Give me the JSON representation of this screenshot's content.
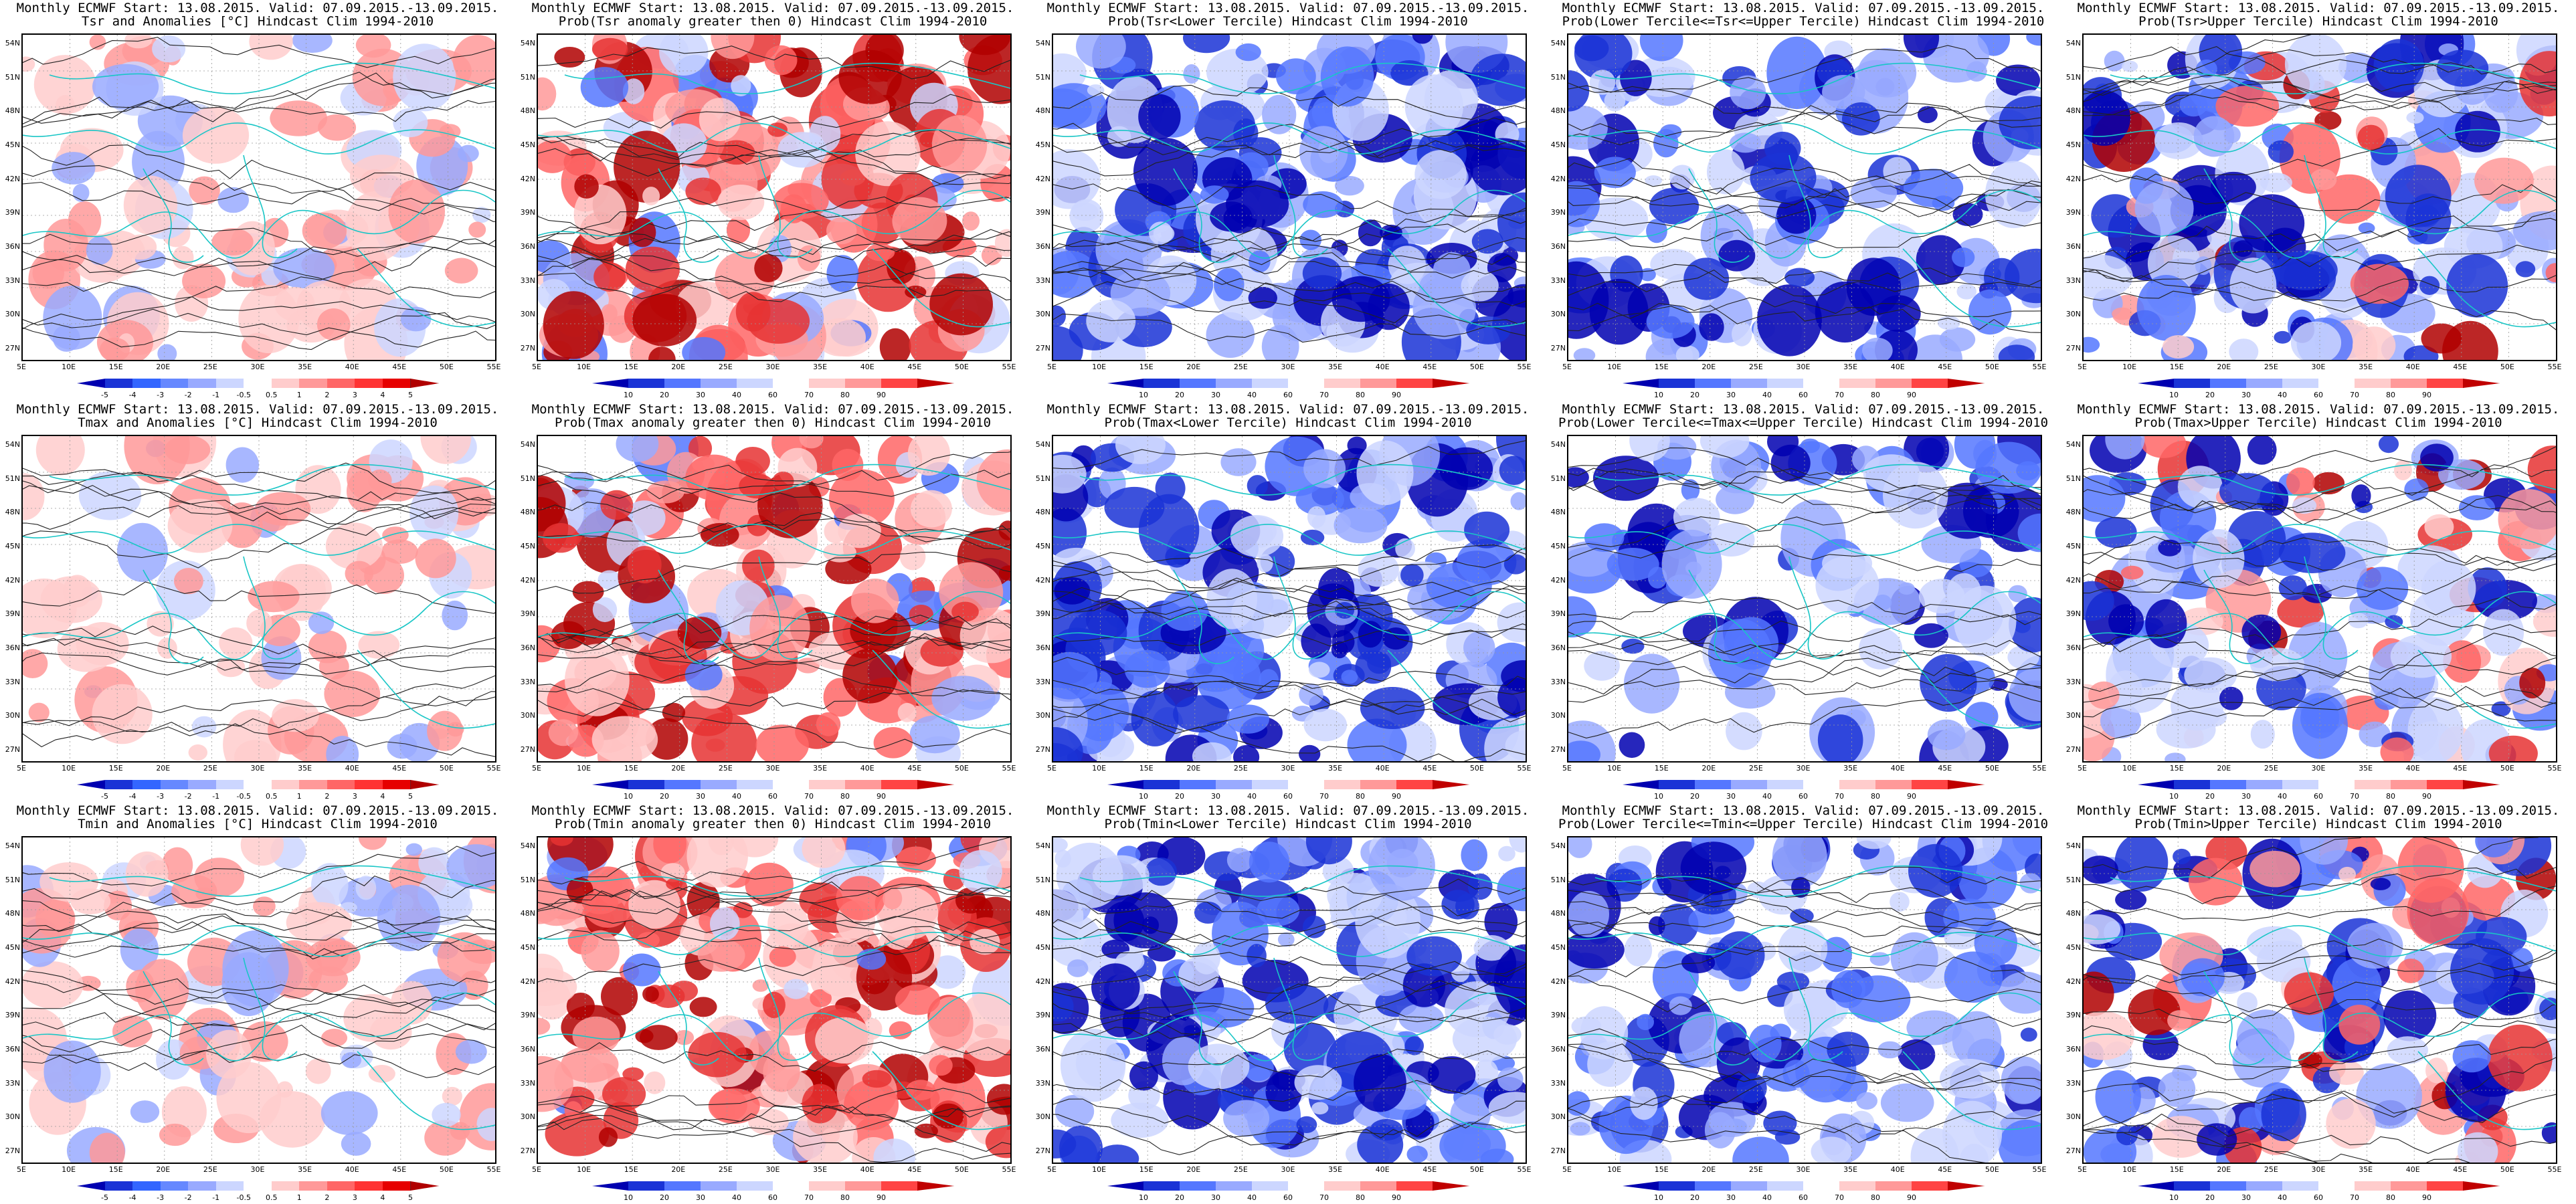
{
  "latitudes": [
    "54N",
    "51N",
    "48N",
    "45N",
    "42N",
    "39N",
    "36N",
    "33N",
    "30N",
    "27N"
  ],
  "longitudes": [
    "5E",
    "10E",
    "15E",
    "20E",
    "25E",
    "30E",
    "35E",
    "40E",
    "45E",
    "50E",
    "55E"
  ],
  "colorbars": {
    "anom": {
      "labels": [
        "-5",
        "-4",
        "-3",
        "-2",
        "-1",
        "-0.5",
        "0.5",
        "1",
        "2",
        "3",
        "4",
        "5"
      ],
      "colors": [
        "#0000b0",
        "#1a33d6",
        "#3366ff",
        "#6688ff",
        "#99aaff",
        "#ccd6ff",
        "#ffffff",
        "#ffcccc",
        "#ff9999",
        "#ff6666",
        "#ff3333",
        "#e60000",
        "#b00000"
      ]
    },
    "prob": {
      "labels": [
        "10",
        "20",
        "30",
        "40",
        "60",
        "70",
        "80",
        "90"
      ],
      "colors": [
        "#0000b0",
        "#1a33d6",
        "#5577ff",
        "#99aaff",
        "#ccd6ff",
        "#ffffff",
        "#ffcccc",
        "#ff9999",
        "#ff4444",
        "#c00000"
      ]
    }
  },
  "panels": [
    {
      "line1": "Monthly ECMWF Start: 13.08.2015. Valid: 07.09.2015.-13.09.2015.",
      "line2": "Tsr and Anomalies [°C] Hindcast Clim 1994-2010",
      "cbar": "anom",
      "fill": "anom",
      "seed": 11,
      "bias": 0.25
    },
    {
      "line1": "Monthly ECMWF Start: 13.08.2015. Valid: 07.09.2015.-13.09.2015.",
      "line2": "Prob(Tsr anomaly greater then 0) Hindcast Clim 1994-2010",
      "cbar": "prob",
      "fill": "red",
      "seed": 12,
      "bias": 0.55
    },
    {
      "line1": "Monthly ECMWF Start: 13.08.2015. Valid: 07.09.2015.-13.09.2015.",
      "line2": "Prob(Tsr<Lower Tercile) Hindcast Clim 1994-2010",
      "cbar": "prob",
      "fill": "blue",
      "seed": 13,
      "bias": 0.75
    },
    {
      "line1": "Monthly ECMWF Start: 13.08.2015. Valid: 07.09.2015.-13.09.2015.",
      "line2": "Prob(Lower Tercile<=Tsr<=Upper Tercile) Hindcast Clim 1994-2010",
      "cbar": "prob",
      "fill": "blue",
      "seed": 14,
      "bias": 0.55
    },
    {
      "line1": "Monthly ECMWF Start: 13.08.2015. Valid: 07.09.2015.-13.09.2015.",
      "line2": "Prob(Tsr>Upper Tercile) Hindcast Clim 1994-2010",
      "cbar": "prob",
      "fill": "mixed",
      "seed": 15,
      "bias": 0.55
    },
    {
      "line1": "Monthly ECMWF Start: 13.08.2015. Valid: 07.09.2015.-13.09.2015.",
      "line2": "Tmax and Anomalies [°C] Hindcast Clim 1994-2010",
      "cbar": "anom",
      "fill": "anom",
      "seed": 21,
      "bias": 0.2
    },
    {
      "line1": "Monthly ECMWF Start: 13.08.2015. Valid: 07.09.2015.-13.09.2015.",
      "line2": "Prob(Tmax anomaly greater then 0) Hindcast Clim 1994-2010",
      "cbar": "prob",
      "fill": "red",
      "seed": 22,
      "bias": 0.5
    },
    {
      "line1": "Monthly ECMWF Start: 13.08.2015. Valid: 07.09.2015.-13.09.2015.",
      "line2": "Prob(Tmax<Lower Tercile) Hindcast Clim 1994-2010",
      "cbar": "prob",
      "fill": "blue",
      "seed": 23,
      "bias": 0.7
    },
    {
      "line1": "Monthly ECMWF Start: 13.08.2015. Valid: 07.09.2015.-13.09.2015.",
      "line2": "Prob(Lower Tercile<=Tmax<=Upper Tercile) Hindcast Clim 1994-2010",
      "cbar": "prob",
      "fill": "blue",
      "seed": 24,
      "bias": 0.45
    },
    {
      "line1": "Monthly ECMWF Start: 13.08.2015. Valid: 07.09.2015.-13.09.2015.",
      "line2": "Prob(Tmax>Upper Tercile) Hindcast Clim 1994-2010",
      "cbar": "prob",
      "fill": "mixed",
      "seed": 25,
      "bias": 0.5
    },
    {
      "line1": "Monthly ECMWF Start: 13.08.2015. Valid: 07.09.2015.-13.09.2015.",
      "line2": "Tmin and Anomalies [°C] Hindcast Clim 1994-2010",
      "cbar": "anom",
      "fill": "anom",
      "seed": 31,
      "bias": 0.3
    },
    {
      "line1": "Monthly ECMWF Start: 13.08.2015. Valid: 07.09.2015.-13.09.2015.",
      "line2": "Prob(Tmin anomaly greater then 0) Hindcast Clim 1994-2010",
      "cbar": "prob",
      "fill": "red",
      "seed": 32,
      "bias": 0.7
    },
    {
      "line1": "Monthly ECMWF Start: 13.08.2015. Valid: 07.09.2015.-13.09.2015.",
      "line2": "Prob(Tmin<Lower Tercile) Hindcast Clim 1994-2010",
      "cbar": "prob",
      "fill": "blue",
      "seed": 33,
      "bias": 0.75
    },
    {
      "line1": "Monthly ECMWF Start: 13.08.2015. Valid: 07.09.2015.-13.09.2015.",
      "line2": "Prob(Lower Tercile<=Tmin<=Upper Tercile) Hindcast Clim 1994-2010",
      "cbar": "prob",
      "fill": "blue",
      "seed": 34,
      "bias": 0.6
    },
    {
      "line1": "Monthly ECMWF Start: 13.08.2015. Valid: 07.09.2015.-13.09.2015.",
      "line2": "Prob(Tmin>Upper Tercile) Hindcast Clim 1994-2010",
      "cbar": "prob",
      "fill": "mixed",
      "seed": 35,
      "bias": 0.55
    }
  ]
}
